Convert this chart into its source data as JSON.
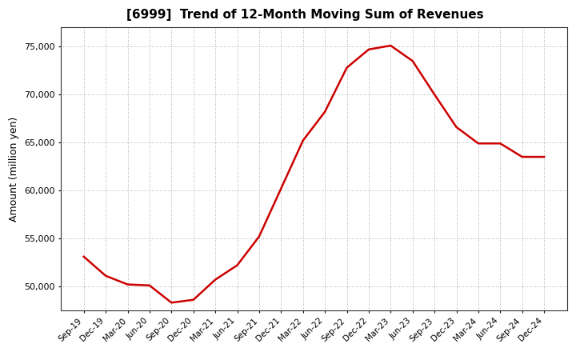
{
  "title": "[6999]  Trend of 12-Month Moving Sum of Revenues",
  "ylabel": "Amount (million yen)",
  "line_color": "#cc0000",
  "line_width": 1.8,
  "background_color": "#ffffff",
  "grid_color": "#999999",
  "ylim": [
    47500,
    77000
  ],
  "yticks": [
    50000,
    55000,
    60000,
    65000,
    70000,
    75000
  ],
  "labels": [
    "Sep-19",
    "Dec-19",
    "Mar-20",
    "Jun-20",
    "Sep-20",
    "Dec-20",
    "Mar-21",
    "Jun-21",
    "Sep-21",
    "Dec-21",
    "Mar-22",
    "Jun-22",
    "Sep-22",
    "Dec-22",
    "Mar-23",
    "Jun-23",
    "Sep-23",
    "Dec-23",
    "Mar-24",
    "Jun-24",
    "Sep-24",
    "Dec-24"
  ],
  "values": [
    53100,
    51100,
    50200,
    50100,
    48300,
    48600,
    50700,
    52200,
    55200,
    60200,
    65200,
    68200,
    72800,
    74700,
    75100,
    73500,
    70000,
    66600,
    64900,
    64900,
    63500,
    63500
  ]
}
